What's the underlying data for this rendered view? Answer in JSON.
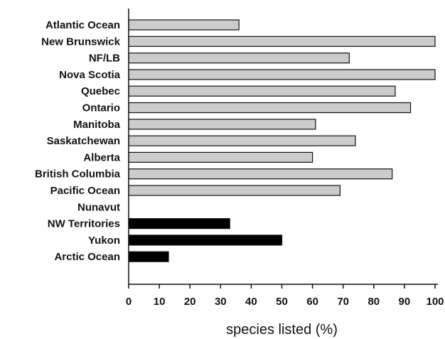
{
  "chart_data": {
    "type": "bar",
    "orientation": "horizontal",
    "title": "",
    "xlabel": "species listed (%)",
    "ylabel": "",
    "xlim": [
      0,
      100
    ],
    "xticks": [
      "0",
      "10",
      "20",
      "30",
      "40",
      "50",
      "60",
      "70",
      "80",
      "90",
      "100"
    ],
    "grid": false,
    "categories": [
      "Atlantic Ocean",
      "New Brunswick",
      "NF/LB",
      "Nova Scotia",
      "Quebec",
      "Ontario",
      "Manitoba",
      "Saskatchewan",
      "Alberta",
      "British Columbia",
      "Pacific Ocean",
      "Nunavut",
      "NW Territories",
      "Yukon",
      "Arctic Ocean"
    ],
    "values": [
      36,
      100,
      72,
      100,
      87,
      92,
      61,
      74,
      60,
      86,
      69,
      0,
      33,
      50,
      13
    ],
    "bar_colors": [
      "#cccccc",
      "#cccccc",
      "#cccccc",
      "#cccccc",
      "#cccccc",
      "#cccccc",
      "#cccccc",
      "#cccccc",
      "#cccccc",
      "#cccccc",
      "#cccccc",
      "#000000",
      "#000000",
      "#000000",
      "#000000"
    ]
  }
}
